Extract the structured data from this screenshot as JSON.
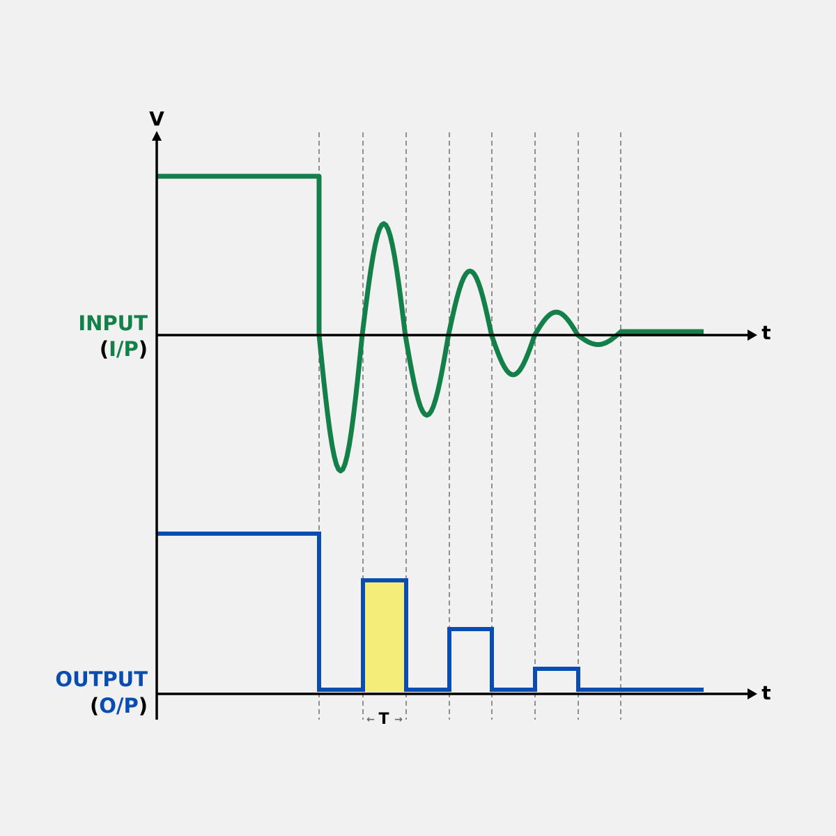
{
  "axes": {
    "vertical": "V",
    "input_time": "t",
    "output_time": "t"
  },
  "input": {
    "label": "INPUT",
    "abbrev": [
      "(",
      "I/P",
      ")"
    ]
  },
  "output": {
    "label": "OUTPUT",
    "abbrev": [
      "(",
      "O/P",
      ")"
    ]
  },
  "period": {
    "left": "←",
    "label": "T",
    "right": "→"
  }
}
